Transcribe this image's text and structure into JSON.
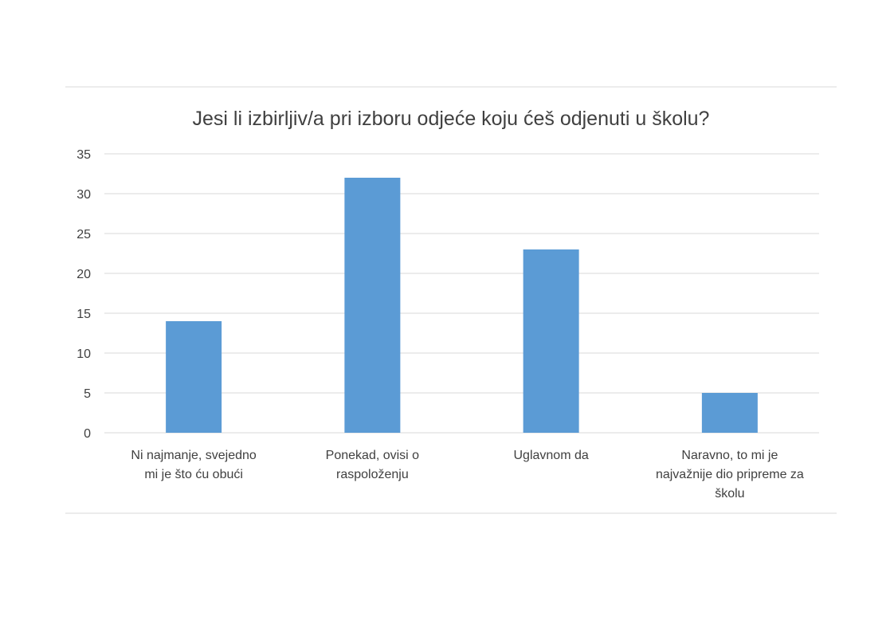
{
  "chart_data": {
    "type": "bar",
    "title": "Jesi li izbirljiv/a pri izboru odjeće koju ćeš odjenuti u školu?",
    "xlabel": "",
    "ylabel": "",
    "categories": [
      [
        "Ni najmanje, svejedno",
        "mi je što ću obući"
      ],
      [
        "Ponekad, ovisi o",
        "raspoloženju"
      ],
      [
        "Uglavnom da"
      ],
      [
        "Naravno, to mi je",
        "najvažnije dio pripreme za",
        "školu"
      ]
    ],
    "values": [
      14,
      32,
      23,
      5
    ],
    "ylim": [
      0,
      35
    ],
    "yticks": [
      0,
      5,
      10,
      15,
      20,
      25,
      30,
      35
    ],
    "grid": true,
    "legend": "none",
    "colors": {
      "bar": "#5b9bd5",
      "grid": "#d9d9d9",
      "text": "#404040"
    }
  }
}
